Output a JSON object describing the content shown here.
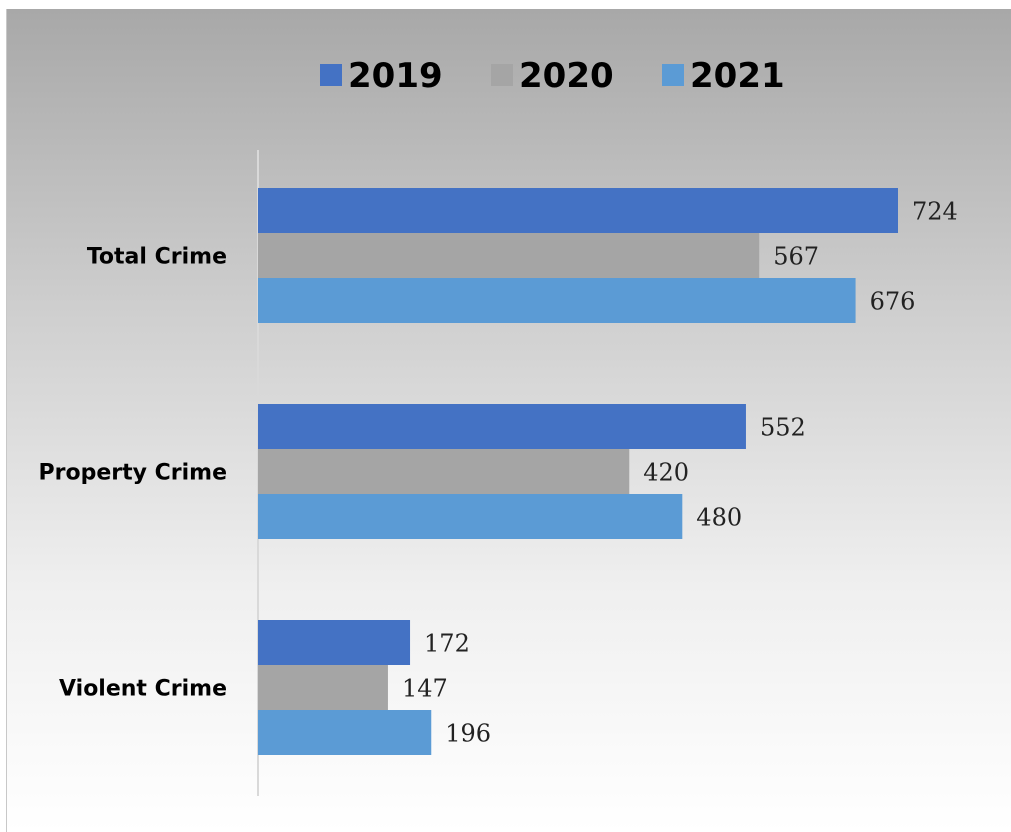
{
  "header": {
    "title_fragment": ""
  },
  "colors": {
    "series_2019": "#4472c4",
    "series_2020": "#a5a5a5",
    "series_2021": "#5b9bd5"
  },
  "chart_data": {
    "type": "bar",
    "orientation": "horizontal",
    "title": "",
    "xlabel": "",
    "ylabel": "",
    "categories": [
      "Total Crime",
      "Property Crime",
      "Violent Crime"
    ],
    "series": [
      {
        "name": "2019",
        "values": [
          724,
          552,
          172
        ]
      },
      {
        "name": "2020",
        "values": [
          567,
          420,
          147
        ]
      },
      {
        "name": "2021",
        "values": [
          676,
          480,
          196
        ]
      }
    ],
    "xlim": [
      0,
      800
    ],
    "legend": "top",
    "grid": false,
    "data_labels": true
  }
}
